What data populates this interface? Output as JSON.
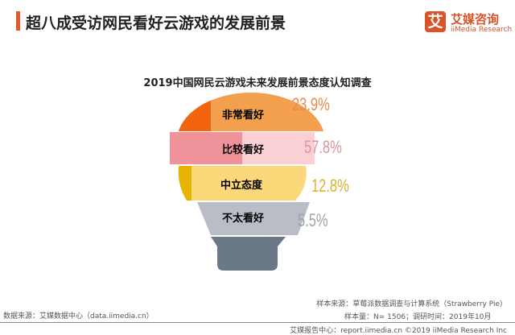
{
  "header": {
    "title": "超八成受访网民看好云游戏的发展前景",
    "logo_mark": "艾",
    "logo_cn": "艾媒咨询",
    "logo_en": "iiMedia Research"
  },
  "chart_data": {
    "type": "infographic-bulb",
    "title": "2019中国网民云游戏未来发展前景态度认知调查",
    "categories": [
      "非常看好",
      "比较看好",
      "中立态度",
      "不太看好"
    ],
    "values": [
      23.9,
      57.8,
      12.8,
      5.5
    ],
    "labels": [
      "23.9%",
      "57.8%",
      "12.8%",
      "5.5%"
    ],
    "colors": [
      "#f2a04e",
      "#f0929a",
      "#fbd97a",
      "#b9bdc6"
    ]
  },
  "footer": {
    "source": "数据来源：艾媒数据中心（data.iimedia.cn）",
    "sample_source": "样本来源：草莓派数据调查与计算系统（Strawberry Pie）",
    "sample_size": "样本量：N= 1506；调研时间：2019年10月",
    "report": "艾媒报告中心：report.iimedia.cn ©2019  iiMedia Research  Inc"
  }
}
